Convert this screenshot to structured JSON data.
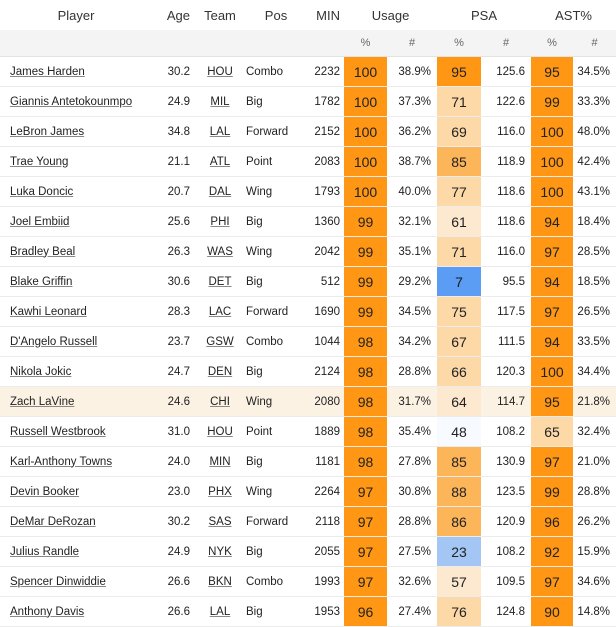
{
  "headers": {
    "player": "Player",
    "age": "Age",
    "team": "Team",
    "pos": "Pos",
    "min": "MIN",
    "usage": "Usage",
    "psa": "PSA",
    "ast": "AST%",
    "pct_symbol": "%",
    "num_symbol": "#"
  },
  "colors": {
    "orange_dark": "#ff9714",
    "orange_mid": "#fdb55a",
    "orange_light": "#fdd9a8",
    "orange_pale": "#fde9cf",
    "neutral": "#f7fbff",
    "blue_mid": "#a3c6f5",
    "blue_dark": "#5b9cf5",
    "highlight_row": "#fbf2e4"
  },
  "rows": [
    {
      "player": "James Harden",
      "age": "30.2",
      "team": "HOU",
      "pos": "Combo",
      "min": "2232",
      "usage_pct": "100",
      "usage_val": "38.9%",
      "psa_pct": "95",
      "psa_val": "125.6",
      "ast_pct": "95",
      "ast_val": "34.5%"
    },
    {
      "player": "Giannis Antetokounmpo",
      "age": "24.9",
      "team": "MIL",
      "pos": "Big",
      "min": "1782",
      "usage_pct": "100",
      "usage_val": "37.3%",
      "psa_pct": "71",
      "psa_val": "122.6",
      "ast_pct": "99",
      "ast_val": "33.3%"
    },
    {
      "player": "LeBron James",
      "age": "34.8",
      "team": "LAL",
      "pos": "Forward",
      "min": "2152",
      "usage_pct": "100",
      "usage_val": "36.2%",
      "psa_pct": "69",
      "psa_val": "116.0",
      "ast_pct": "100",
      "ast_val": "48.0%"
    },
    {
      "player": "Trae Young",
      "age": "21.1",
      "team": "ATL",
      "pos": "Point",
      "min": "2083",
      "usage_pct": "100",
      "usage_val": "38.7%",
      "psa_pct": "85",
      "psa_val": "118.9",
      "ast_pct": "100",
      "ast_val": "42.4%"
    },
    {
      "player": "Luka Doncic",
      "age": "20.7",
      "team": "DAL",
      "pos": "Wing",
      "min": "1793",
      "usage_pct": "100",
      "usage_val": "40.0%",
      "psa_pct": "77",
      "psa_val": "118.6",
      "ast_pct": "100",
      "ast_val": "43.1%"
    },
    {
      "player": "Joel Embiid",
      "age": "25.6",
      "team": "PHI",
      "pos": "Big",
      "min": "1360",
      "usage_pct": "99",
      "usage_val": "32.1%",
      "psa_pct": "61",
      "psa_val": "118.6",
      "ast_pct": "94",
      "ast_val": "18.4%"
    },
    {
      "player": "Bradley Beal",
      "age": "26.3",
      "team": "WAS",
      "pos": "Wing",
      "min": "2042",
      "usage_pct": "99",
      "usage_val": "35.1%",
      "psa_pct": "71",
      "psa_val": "116.0",
      "ast_pct": "97",
      "ast_val": "28.5%"
    },
    {
      "player": "Blake Griffin",
      "age": "30.6",
      "team": "DET",
      "pos": "Big",
      "min": "512",
      "usage_pct": "99",
      "usage_val": "29.2%",
      "psa_pct": "7",
      "psa_val": "95.5",
      "ast_pct": "94",
      "ast_val": "18.5%"
    },
    {
      "player": "Kawhi Leonard",
      "age": "28.3",
      "team": "LAC",
      "pos": "Forward",
      "min": "1690",
      "usage_pct": "99",
      "usage_val": "34.5%",
      "psa_pct": "75",
      "psa_val": "117.5",
      "ast_pct": "97",
      "ast_val": "26.5%"
    },
    {
      "player": "D'Angelo Russell",
      "age": "23.7",
      "team": "GSW",
      "pos": "Combo",
      "min": "1044",
      "usage_pct": "98",
      "usage_val": "34.2%",
      "psa_pct": "67",
      "psa_val": "111.5",
      "ast_pct": "94",
      "ast_val": "33.5%"
    },
    {
      "player": "Nikola Jokic",
      "age": "24.7",
      "team": "DEN",
      "pos": "Big",
      "min": "2124",
      "usage_pct": "98",
      "usage_val": "28.8%",
      "psa_pct": "66",
      "psa_val": "120.3",
      "ast_pct": "100",
      "ast_val": "34.4%"
    },
    {
      "player": "Zach LaVine",
      "age": "24.6",
      "team": "CHI",
      "pos": "Wing",
      "min": "2080",
      "usage_pct": "98",
      "usage_val": "31.7%",
      "psa_pct": "64",
      "psa_val": "114.7",
      "ast_pct": "95",
      "ast_val": "21.8%",
      "highlight": true
    },
    {
      "player": "Russell Westbrook",
      "age": "31.0",
      "team": "HOU",
      "pos": "Point",
      "min": "1889",
      "usage_pct": "98",
      "usage_val": "35.4%",
      "psa_pct": "48",
      "psa_val": "108.2",
      "ast_pct": "65",
      "ast_val": "32.4%"
    },
    {
      "player": "Karl-Anthony Towns",
      "age": "24.0",
      "team": "MIN",
      "pos": "Big",
      "min": "1181",
      "usage_pct": "98",
      "usage_val": "27.8%",
      "psa_pct": "85",
      "psa_val": "130.9",
      "ast_pct": "97",
      "ast_val": "21.0%"
    },
    {
      "player": "Devin Booker",
      "age": "23.0",
      "team": "PHX",
      "pos": "Wing",
      "min": "2264",
      "usage_pct": "97",
      "usage_val": "30.8%",
      "psa_pct": "88",
      "psa_val": "123.5",
      "ast_pct": "99",
      "ast_val": "28.8%"
    },
    {
      "player": "DeMar DeRozan",
      "age": "30.2",
      "team": "SAS",
      "pos": "Forward",
      "min": "2118",
      "usage_pct": "97",
      "usage_val": "28.8%",
      "psa_pct": "86",
      "psa_val": "120.9",
      "ast_pct": "96",
      "ast_val": "26.2%"
    },
    {
      "player": "Julius Randle",
      "age": "24.9",
      "team": "NYK",
      "pos": "Big",
      "min": "2055",
      "usage_pct": "97",
      "usage_val": "27.5%",
      "psa_pct": "23",
      "psa_val": "108.2",
      "ast_pct": "92",
      "ast_val": "15.9%"
    },
    {
      "player": "Spencer Dinwiddie",
      "age": "26.6",
      "team": "BKN",
      "pos": "Combo",
      "min": "1993",
      "usage_pct": "97",
      "usage_val": "32.6%",
      "psa_pct": "57",
      "psa_val": "109.5",
      "ast_pct": "97",
      "ast_val": "34.6%"
    },
    {
      "player": "Anthony Davis",
      "age": "26.6",
      "team": "LAL",
      "pos": "Big",
      "min": "1953",
      "usage_pct": "96",
      "usage_val": "27.4%",
      "psa_pct": "76",
      "psa_val": "124.8",
      "ast_pct": "90",
      "ast_val": "14.8%"
    }
  ]
}
